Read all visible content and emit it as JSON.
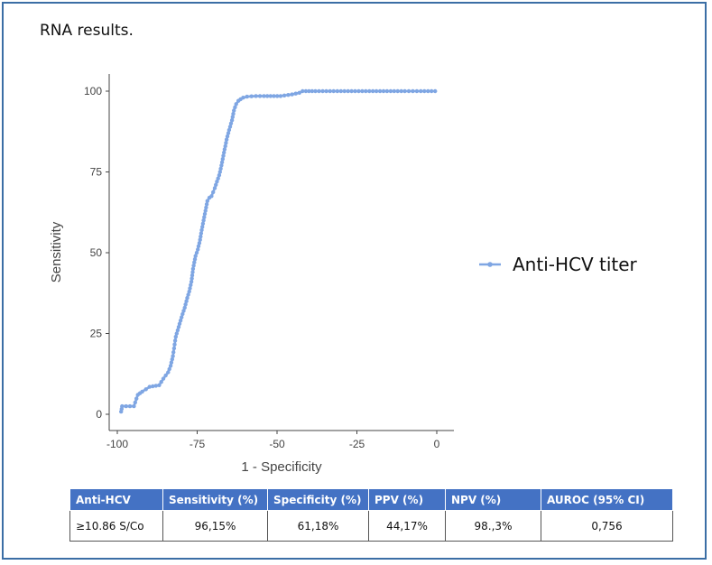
{
  "caption": "RNA results.",
  "chart_data": {
    "type": "line",
    "xlabel": "1 - Specificity",
    "ylabel": "Sensitivity",
    "xlim": [
      -100,
      0
    ],
    "ylim": [
      0,
      100
    ],
    "x_ticks": [
      -100,
      -75,
      -50,
      -25,
      0
    ],
    "y_ticks": [
      0,
      25,
      50,
      75,
      100
    ],
    "legend_position": "right",
    "grid": false,
    "series": [
      {
        "name": "Anti-HCV titer",
        "color": "#7fa6e3",
        "x": [
          -98.8,
          -98.5,
          -94.8,
          -93.6,
          -92.2,
          -89.9,
          -86.9,
          -85.6,
          -84.1,
          -83.3,
          -82.6,
          -81.7,
          -80.8,
          -79.9,
          -78.9,
          -78.1,
          -77.5,
          -76.8,
          -76.3,
          -75.5,
          -74.8,
          -74.1,
          -73.4,
          -72.6,
          -71.8,
          -71.2,
          -70.5,
          -69.5,
          -68.1,
          -67.4,
          -66.6,
          -65.8,
          -65.0,
          -64.1,
          -63.5,
          -62.8,
          -62.1,
          -61.4,
          -60.6,
          -59.4,
          -56.6,
          -54.1,
          -48.9,
          -45.3,
          -43.0,
          -42.0,
          -38.0,
          -30.0,
          -20.0,
          -10.0,
          -5.0,
          -0.5
        ],
        "y": [
          0.8,
          2.5,
          2.5,
          6.0,
          7.0,
          8.5,
          9.0,
          11.0,
          13.0,
          15.0,
          18.0,
          24.0,
          27.0,
          30.0,
          33.0,
          36.0,
          38.0,
          41.0,
          45.0,
          49.0,
          51.0,
          54.0,
          58.0,
          62.0,
          66.0,
          67.0,
          67.5,
          70.0,
          74.0,
          77.0,
          81.0,
          85.0,
          88.0,
          91.0,
          94.0,
          96.0,
          97.0,
          97.5,
          98.0,
          98.3,
          98.5,
          98.5,
          98.5,
          99.0,
          99.5,
          100.0,
          100.0,
          100.0,
          100.0,
          100.0,
          100.0,
          100.0
        ]
      }
    ]
  },
  "table": {
    "headers": [
      "Anti-HCV",
      "Sensitivity (%)",
      "Specificity (%)",
      "PPV (%)",
      "NPV (%)",
      "AUROC (95% CI)"
    ],
    "row": [
      "≥10.86 S/Co",
      "96,15%",
      "61,18%",
      "44,17%",
      "98.,3%",
      "0,756"
    ]
  }
}
